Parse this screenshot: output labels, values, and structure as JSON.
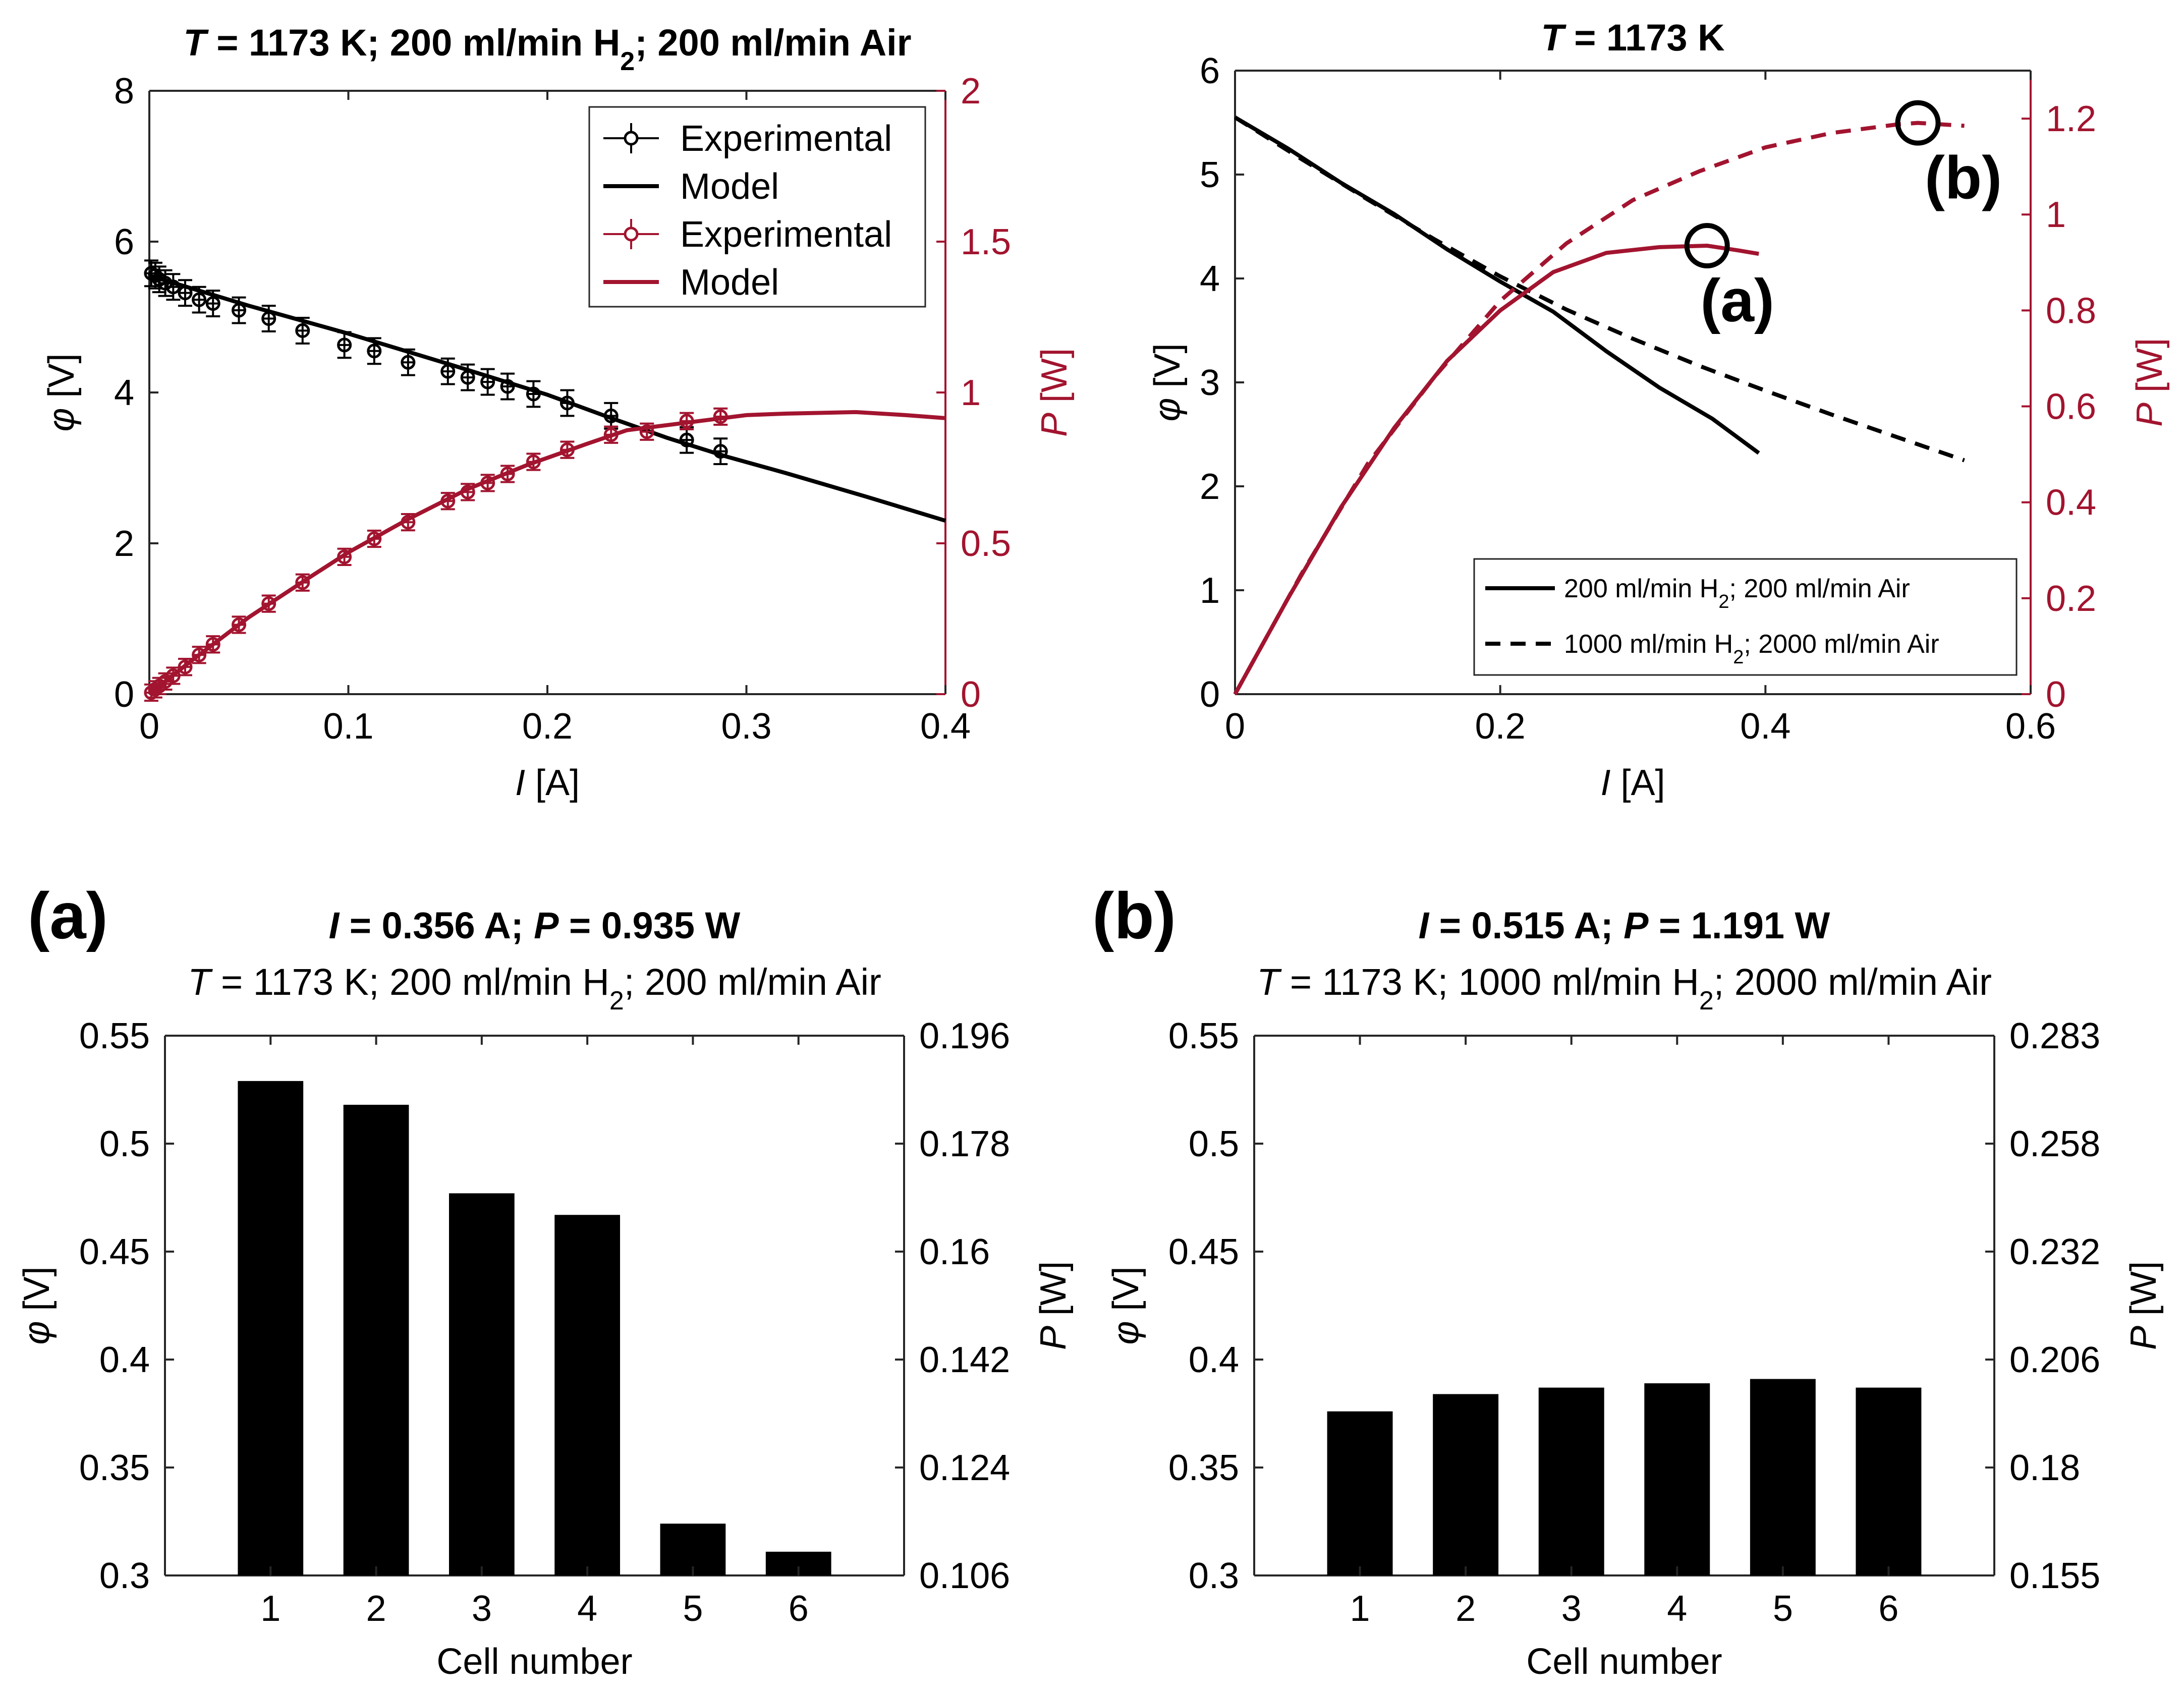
{
  "colors": {
    "black": "#000000",
    "red": "#A2142F"
  },
  "chart_data": [
    {
      "panel": "top-left",
      "type": "line",
      "title": {
        "T_symbol": "T",
        "rest": " = 1173 K; 200 ml/min H",
        "sub": "2",
        "tail": "; 200 ml/min Air"
      },
      "xlabel": {
        "sym": "I",
        "unit": " [A]"
      },
      "ylabel_left": {
        "sym": "φ",
        "unit": " [V]"
      },
      "ylabel_right": {
        "sym": "P",
        "unit": " [W]"
      },
      "xlim": [
        0,
        0.4
      ],
      "ylim_left": [
        0,
        8
      ],
      "ylim_right": [
        0,
        2
      ],
      "xticks": [
        "0",
        "0.1",
        "0.2",
        "0.3",
        "0.4"
      ],
      "yticks_left": [
        "0",
        "2",
        "4",
        "6",
        "8"
      ],
      "yticks_right": [
        "0",
        "0.5",
        "1",
        "1.5",
        "2"
      ],
      "legend": {
        "placement": "top-right",
        "entries": [
          "Experimental",
          "Model",
          "Experimental",
          "Model"
        ]
      },
      "series": [
        {
          "name": "Experimental",
          "axis": "left",
          "color": "black",
          "style": "errorbar",
          "x": [
            0.001,
            0.003,
            0.005,
            0.008,
            0.012,
            0.018,
            0.025,
            0.032,
            0.045,
            0.06,
            0.077,
            0.098,
            0.113,
            0.13,
            0.15,
            0.16,
            0.17,
            0.18,
            0.193,
            0.21,
            0.232,
            0.27,
            0.287
          ],
          "y": [
            5.58,
            5.55,
            5.5,
            5.45,
            5.4,
            5.32,
            5.23,
            5.18,
            5.09,
            4.98,
            4.82,
            4.63,
            4.55,
            4.4,
            4.28,
            4.2,
            4.14,
            4.08,
            3.98,
            3.86,
            3.69,
            3.37,
            3.22
          ],
          "err": 0.17
        },
        {
          "name": "Model",
          "axis": "left",
          "color": "black",
          "style": "line",
          "x": [
            0,
            0.05,
            0.1,
            0.15,
            0.2,
            0.23,
            0.26,
            0.29,
            0.32,
            0.36,
            0.4
          ],
          "y": [
            5.55,
            5.15,
            4.78,
            4.38,
            3.97,
            3.68,
            3.4,
            3.15,
            2.93,
            2.62,
            2.3
          ]
        },
        {
          "name": "Experimental",
          "axis": "right",
          "color": "red",
          "style": "errorbar",
          "x": [
            0.001,
            0.003,
            0.005,
            0.008,
            0.012,
            0.018,
            0.025,
            0.032,
            0.045,
            0.06,
            0.077,
            0.098,
            0.113,
            0.13,
            0.15,
            0.16,
            0.17,
            0.18,
            0.193,
            0.21,
            0.232,
            0.25,
            0.27,
            0.287
          ],
          "y": [
            0.005,
            0.016,
            0.027,
            0.042,
            0.061,
            0.09,
            0.13,
            0.165,
            0.23,
            0.3,
            0.37,
            0.455,
            0.515,
            0.57,
            0.64,
            0.67,
            0.7,
            0.73,
            0.77,
            0.81,
            0.86,
            0.87,
            0.905,
            0.92
          ],
          "err": 0.027
        },
        {
          "name": "Model",
          "axis": "right",
          "color": "red",
          "style": "line",
          "x": [
            0,
            0.02,
            0.05,
            0.08,
            0.1,
            0.13,
            0.16,
            0.19,
            0.22,
            0.24,
            0.27,
            0.3,
            0.32,
            0.355,
            0.38,
            0.4
          ],
          "y": [
            0,
            0.105,
            0.255,
            0.385,
            0.47,
            0.58,
            0.68,
            0.76,
            0.83,
            0.875,
            0.9,
            0.925,
            0.93,
            0.935,
            0.925,
            0.915
          ]
        }
      ]
    },
    {
      "panel": "top-right",
      "type": "line",
      "title": {
        "T_symbol": "T",
        "rest": " = 1173 K"
      },
      "xlabel": {
        "sym": "I",
        "unit": " [A]"
      },
      "ylabel_left": {
        "sym": "φ",
        "unit": " [V]"
      },
      "ylabel_right": {
        "sym": "P",
        "unit": " [W]"
      },
      "xlim": [
        0,
        0.6
      ],
      "ylim_left": [
        0,
        6
      ],
      "ylim_right": [
        0,
        1.3
      ],
      "xticks": [
        "0",
        "0.2",
        "0.4",
        "0.6"
      ],
      "yticks_left": [
        "0",
        "1",
        "2",
        "3",
        "4",
        "5",
        "6"
      ],
      "yticks_right": [
        "0",
        "0.2",
        "0.4",
        "0.6",
        "0.8",
        "1",
        "1.2"
      ],
      "legend": {
        "placement": "bottom-right",
        "entries": [
          {
            "pre": "200 ml/min H",
            "sub": "2",
            "post": "; 200 ml/min Air"
          },
          {
            "pre": "1000 ml/min H",
            "sub": "2",
            "post": "; 2000 ml/min Air"
          }
        ]
      },
      "annotations": [
        {
          "label": "(a)",
          "x": 0.356,
          "y_right": 0.935
        },
        {
          "label": "(b)",
          "x": 0.515,
          "y_right": 1.191
        }
      ],
      "series": [
        {
          "name": "200 ml/min H2 phi",
          "axis": "left",
          "color": "black",
          "dash": "solid",
          "x": [
            0,
            0.04,
            0.08,
            0.12,
            0.16,
            0.2,
            0.24,
            0.28,
            0.32,
            0.36,
            0.395
          ],
          "y": [
            5.55,
            5.25,
            4.92,
            4.62,
            4.28,
            3.97,
            3.68,
            3.3,
            2.95,
            2.65,
            2.32
          ]
        },
        {
          "name": "1000 ml/min H2 phi",
          "axis": "left",
          "color": "black",
          "dash": "dashed",
          "x": [
            0,
            0.05,
            0.1,
            0.15,
            0.2,
            0.25,
            0.3,
            0.35,
            0.4,
            0.45,
            0.5,
            0.55
          ],
          "y": [
            5.55,
            5.15,
            4.76,
            4.38,
            4.02,
            3.7,
            3.42,
            3.16,
            2.92,
            2.69,
            2.47,
            2.25
          ]
        },
        {
          "name": "200 ml/min H2 P",
          "axis": "right",
          "color": "red",
          "dash": "solid",
          "x": [
            0,
            0.04,
            0.08,
            0.12,
            0.16,
            0.2,
            0.24,
            0.28,
            0.32,
            0.356,
            0.38,
            0.395
          ],
          "y": [
            0,
            0.2,
            0.39,
            0.555,
            0.695,
            0.8,
            0.88,
            0.92,
            0.932,
            0.935,
            0.925,
            0.918
          ]
        },
        {
          "name": "1000 ml/min H2 P",
          "axis": "right",
          "color": "red",
          "dash": "dashed",
          "x": [
            0,
            0.05,
            0.1,
            0.15,
            0.2,
            0.25,
            0.3,
            0.35,
            0.4,
            0.45,
            0.5,
            0.515,
            0.55
          ],
          "y": [
            0,
            0.25,
            0.48,
            0.66,
            0.82,
            0.94,
            1.03,
            1.09,
            1.14,
            1.17,
            1.188,
            1.191,
            1.185
          ]
        }
      ]
    },
    {
      "panel": "bottom-left",
      "type": "bar",
      "tag": "(a)",
      "title_line1": {
        "I_sym": "I",
        "I_val": " = 0.356 A;  ",
        "P_sym": "P",
        "P_val": " = 0.935 W"
      },
      "title_line2": {
        "T_symbol": "T",
        "rest": " = 1173 K; 200 ml/min H",
        "sub": "2",
        "tail": "; 200 ml/min Air"
      },
      "xlabel": "Cell number",
      "ylabel_left": {
        "sym": "φ",
        "unit": " [V]"
      },
      "ylabel_right": {
        "sym": "P",
        "unit": " [W]"
      },
      "categories": [
        "1",
        "2",
        "3",
        "4",
        "5",
        "6"
      ],
      "values": [
        0.529,
        0.518,
        0.477,
        0.467,
        0.324,
        0.311
      ],
      "ylim": [
        0.3,
        0.55
      ],
      "yticks_left": [
        "0.3",
        "0.35",
        "0.4",
        "0.45",
        "0.5",
        "0.55"
      ],
      "yticks_right": [
        "0.106",
        "0.124",
        "0.142",
        "0.16",
        "0.178",
        "0.196"
      ]
    },
    {
      "panel": "bottom-right",
      "type": "bar",
      "tag": "(b)",
      "title_line1": {
        "I_sym": "I",
        "I_val": " = 0.515 A;  ",
        "P_sym": "P",
        "P_val": " = 1.191 W"
      },
      "title_line2": {
        "T_symbol": "T",
        "rest": " = 1173 K; 1000 ml/min H",
        "sub": "2",
        "tail": "; 2000 ml/min Air"
      },
      "xlabel": "Cell number",
      "ylabel_left": {
        "sym": "φ",
        "unit": " [V]"
      },
      "ylabel_right": {
        "sym": "P",
        "unit": " [W]"
      },
      "categories": [
        "1",
        "2",
        "3",
        "4",
        "5",
        "6"
      ],
      "values": [
        0.376,
        0.384,
        0.387,
        0.389,
        0.391,
        0.387
      ],
      "ylim": [
        0.3,
        0.55
      ],
      "yticks_left": [
        "0.3",
        "0.35",
        "0.4",
        "0.45",
        "0.5",
        "0.55"
      ],
      "yticks_right": [
        "0.155",
        "0.18",
        "0.206",
        "0.232",
        "0.258",
        "0.283"
      ]
    }
  ]
}
